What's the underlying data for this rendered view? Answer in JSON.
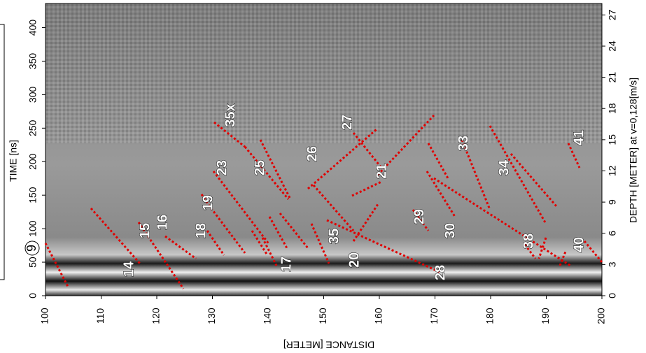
{
  "chart_data": {
    "type": "radargram",
    "xlabel": "DISTANCE [METER]",
    "ylabel": "TIME [ns]",
    "y2label": "DEPTH [METER] at v=0,128[m/s]",
    "xlim": [
      100,
      200
    ],
    "xticks": [
      100,
      110,
      120,
      130,
      140,
      150,
      160,
      170,
      180,
      190,
      200
    ],
    "ylim": [
      0,
      436
    ],
    "yticks": [
      0,
      50,
      100,
      150,
      200,
      250,
      300,
      350,
      400
    ],
    "y2lim": [
      0,
      28.1
    ],
    "y2ticks": [
      0,
      3,
      6,
      9,
      12,
      15,
      18,
      21,
      24,
      27
    ],
    "marker": "9",
    "annotations": [
      "14",
      "15",
      "16",
      "18",
      "19",
      "23",
      "35x",
      "25",
      "17",
      "26",
      "35",
      "20",
      "27",
      "21",
      "28",
      "29",
      "30",
      "33",
      "34",
      "38",
      "41",
      "40"
    ],
    "annotation_color": "#e00000"
  }
}
